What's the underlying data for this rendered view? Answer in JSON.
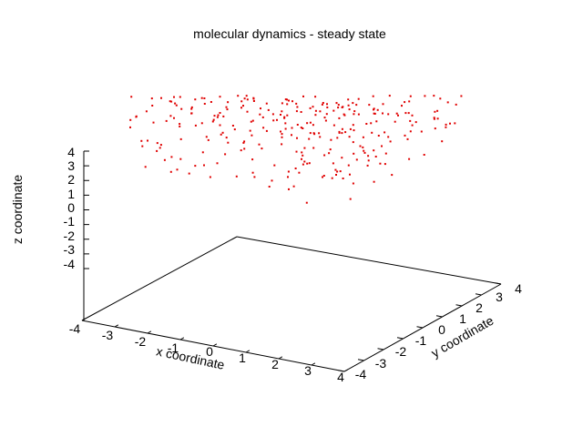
{
  "chart_data": {
    "type": "scatter",
    "title": "molecular dynamics - steady state",
    "xlabel": "x coordinate",
    "ylabel": "y coordinate",
    "zlabel": "z coordinate",
    "xlim": [
      -4,
      4
    ],
    "ylim": [
      -4,
      4
    ],
    "zlim": [
      -4,
      4
    ],
    "x_ticks": [
      "-4",
      "-3",
      "-2",
      "-1",
      "0",
      "1",
      "2",
      "3",
      "4"
    ],
    "y_ticks": [
      "-4",
      "-3",
      "-2",
      "-1",
      "0",
      "1",
      "2",
      "3",
      "4"
    ],
    "z_ticks": [
      "4",
      "3",
      "2",
      "1",
      "0",
      "-1",
      "-2",
      "-3",
      "-4"
    ],
    "z_tick_values": [
      4,
      3,
      2,
      1,
      0,
      -1,
      -2,
      -3,
      -4
    ],
    "view": "3d-perspective",
    "marker_color": "#e00000",
    "n_points": 300,
    "points_note": "points are sampled to approximate the cloud shown"
  }
}
